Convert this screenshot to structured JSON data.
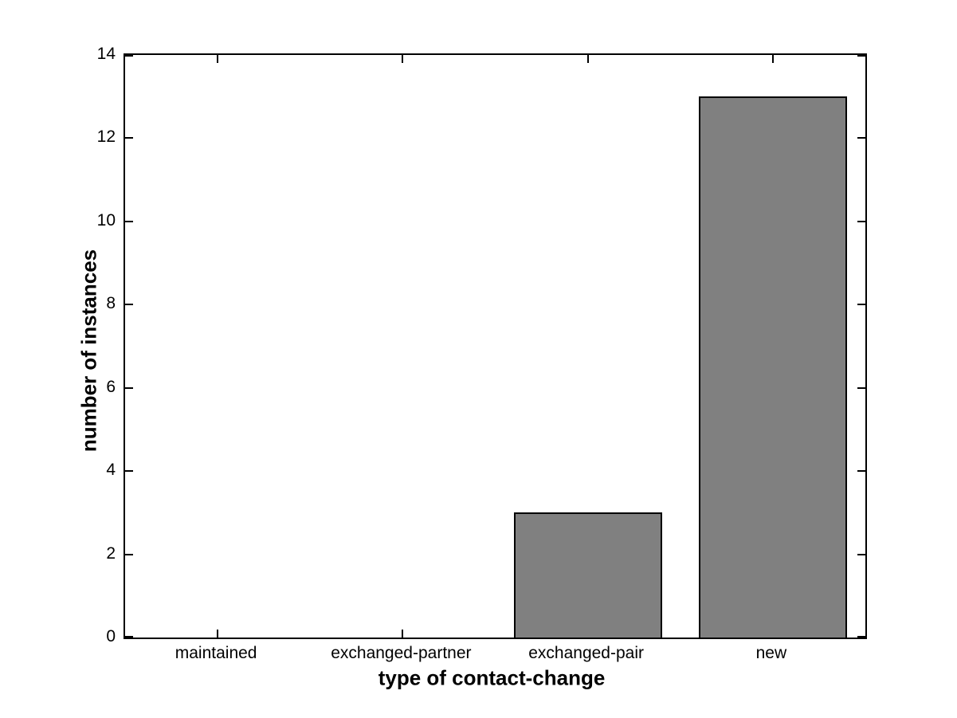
{
  "chart_data": {
    "type": "bar",
    "categories": [
      "maintained",
      "exchanged-partner",
      "exchanged-pair",
      "new"
    ],
    "values": [
      0,
      0,
      3,
      13
    ],
    "title": "",
    "xlabel": "type of contact-change",
    "ylabel": "number of instances",
    "ylim": [
      0,
      14
    ],
    "yticks": [
      0,
      2,
      4,
      6,
      8,
      10,
      12,
      14
    ],
    "bar_width_ratio": 0.8,
    "bar_color": "#808080",
    "bar_edge_color": "#000000",
    "axis_color": "#000000",
    "background_color": "#ffffff",
    "grid": false,
    "legend_position": "none",
    "tick_direction": "in",
    "box": true
  }
}
